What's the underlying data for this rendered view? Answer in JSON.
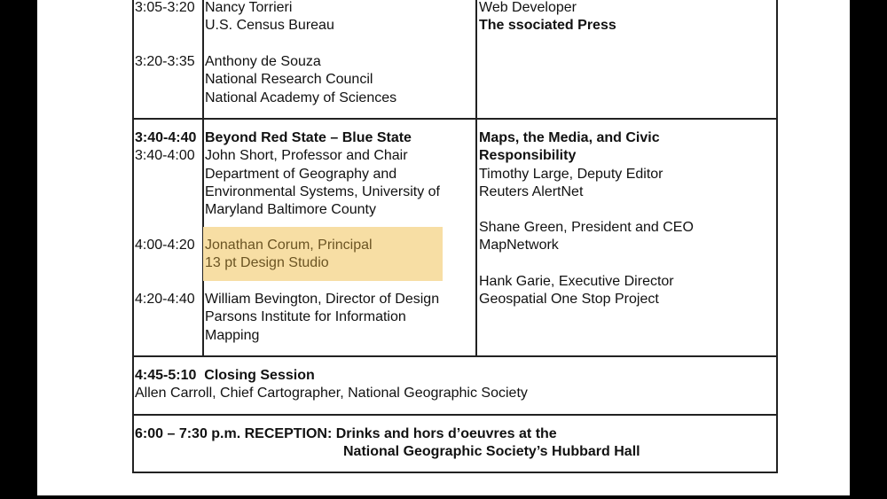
{
  "rows": [
    {
      "left": [
        {
          "time": "3:05-3:20",
          "lines": [
            "Nancy Torrieri",
            "U.S. Census Bureau"
          ]
        },
        {
          "time": "3:20-3:35",
          "lines": [
            "Anthony de Souza",
            "National Research Council",
            "National Academy of Sciences"
          ]
        }
      ],
      "right": [
        "Web Developer",
        "The ssociated Press"
      ]
    },
    {
      "session_time": "3:40-4:40",
      "session_title": "Beyond Red State – Blue State",
      "left": [
        {
          "time": "3:40-4:00",
          "lines": [
            "John Short, Professor and Chair",
            "Department of Geography and",
            "Environmental Systems, University of",
            "Maryland Baltimore County"
          ]
        },
        {
          "time": "4:00-4:20",
          "lines": [
            "Jonathan Corum, Principal",
            "13 pt Design Studio"
          ],
          "highlighted": true
        },
        {
          "time": "4:20-4:40",
          "lines": [
            "William Bevington, Director of Design",
            "Parsons Institute for Information",
            "Mapping"
          ]
        }
      ],
      "right_title": [
        "Maps, the Media, and Civic",
        "Responsibility"
      ],
      "right": [
        [
          "Timothy Large, Deputy Editor",
          "Reuters AlertNet"
        ],
        [
          "Shane Green, President and CEO",
          "MapNetwork"
        ],
        [
          "Hank Garie, Executive Director",
          "Geospatial One Stop Project"
        ]
      ]
    }
  ],
  "closing": {
    "time": "4:45-5:10",
    "title": "Closing Session",
    "line": "Allen Carroll, Chief Cartographer, National Geographic Society"
  },
  "reception": {
    "line1": "6:00 – 7:30 p.m. RECEPTION:  Drinks and hors d’oeuvres at the",
    "line2": "National Geographic Society’s Hubbard Hall"
  },
  "colors": {
    "highlight": "#f7dea4",
    "highlight_text": "#6b5423"
  }
}
